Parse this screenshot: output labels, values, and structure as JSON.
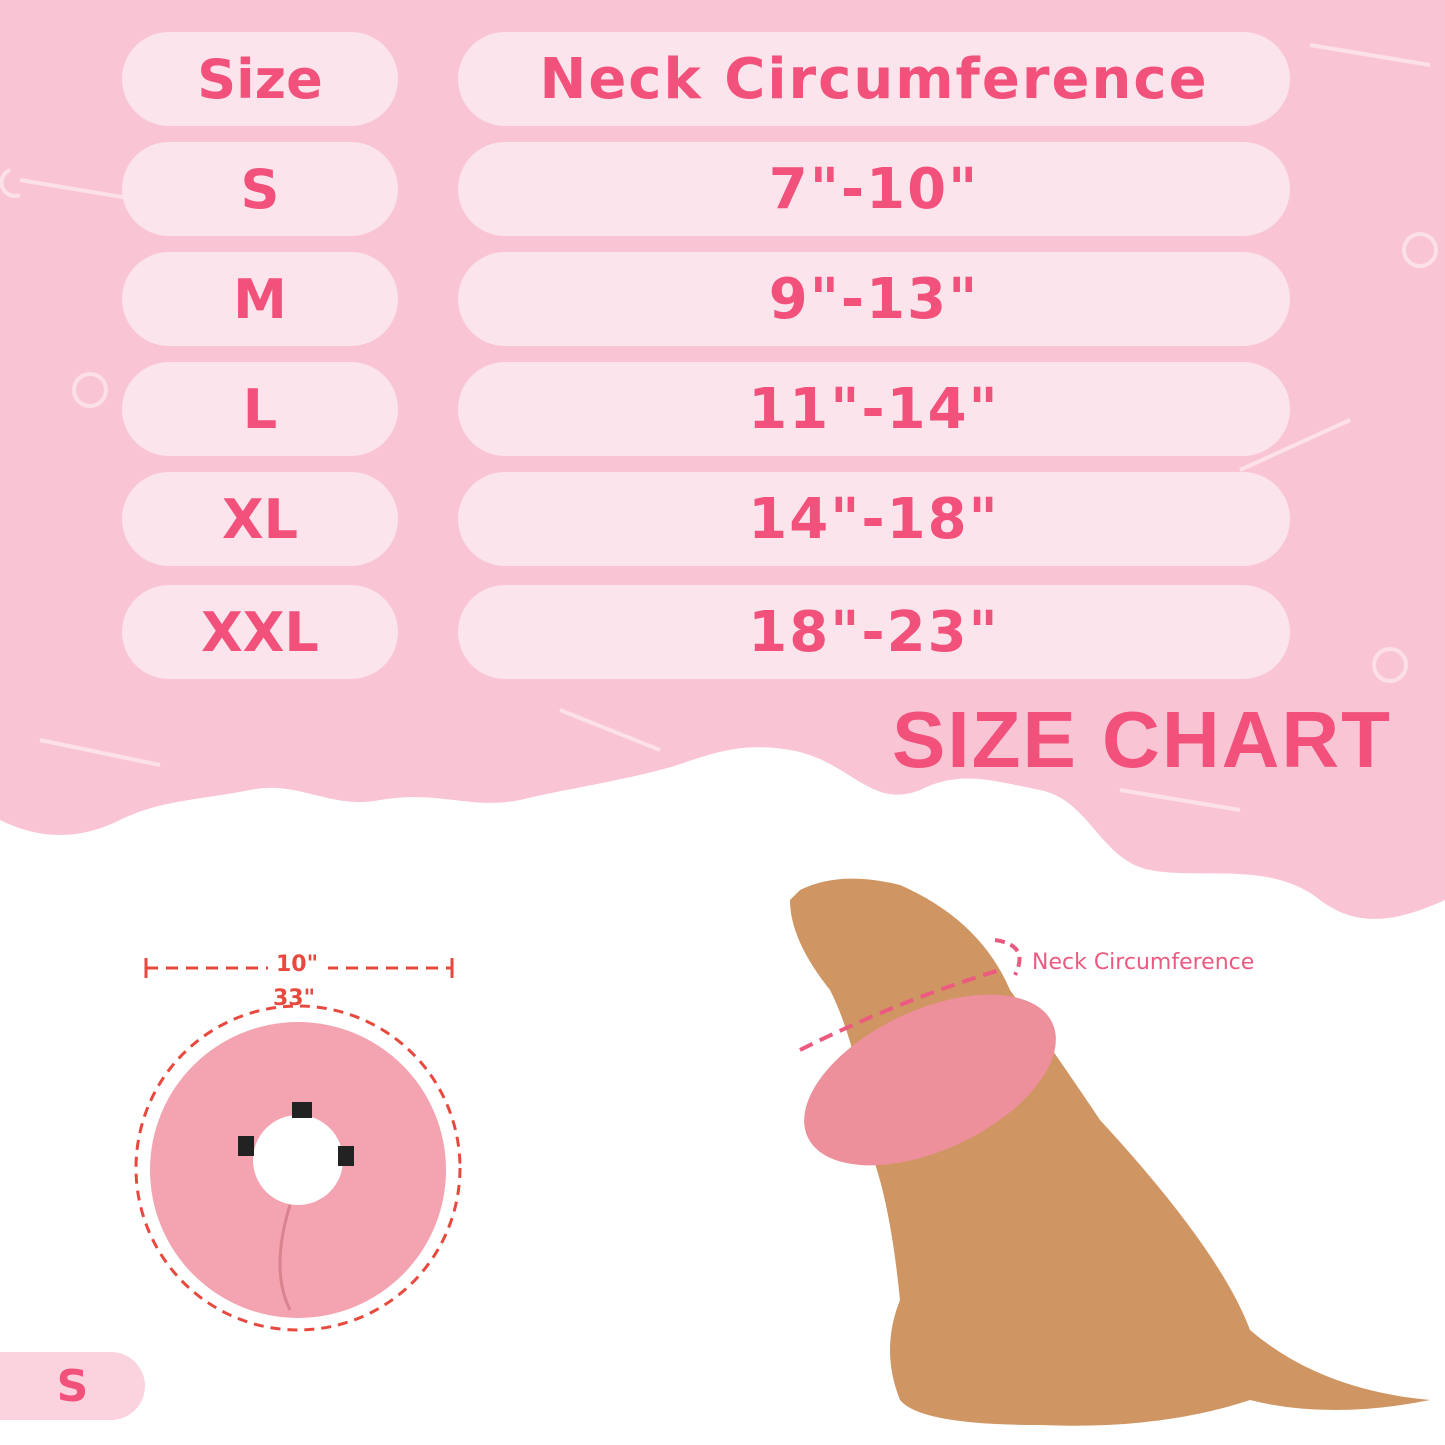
{
  "table": {
    "header": {
      "size": "Size",
      "neck": "Neck Circumference"
    },
    "rows": [
      {
        "size": "S",
        "neck": "7\"-10\""
      },
      {
        "size": "M",
        "neck": "9\"-13\""
      },
      {
        "size": "L",
        "neck": "11\"-14\""
      },
      {
        "size": "XL",
        "neck": "14\"-18\""
      },
      {
        "size": "XXL",
        "neck": "18\"-23\""
      }
    ]
  },
  "title": "SIZE CHART",
  "collar": {
    "width_label": "10\"",
    "circumference_label": "33\""
  },
  "dog": {
    "neck_label": "Neck Circumference"
  },
  "size_badge": "S",
  "colors": {
    "background": "#f9c5d5",
    "accent": "#f2517c",
    "pill": "#fbe4eb",
    "measure": "#e8493e"
  }
}
